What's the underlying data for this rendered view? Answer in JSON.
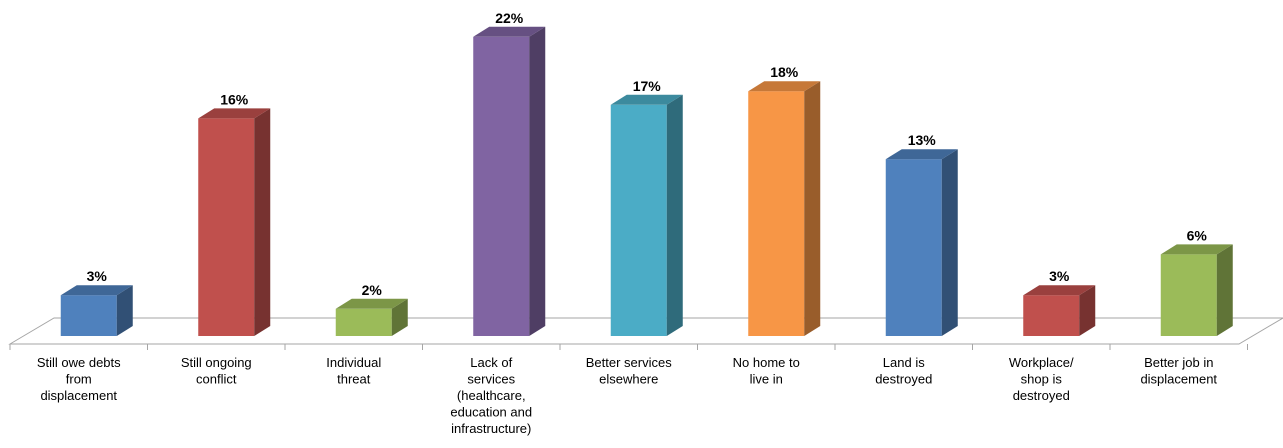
{
  "chart_data": {
    "type": "bar",
    "categories": [
      "Still owe debts from displacement",
      "Still ongoing conflict",
      "Individual threat",
      "Lack of services (healthcare, education and infrastructure)",
      "Better services elsewhere",
      "No home to live in",
      "Land is destroyed",
      "Workplace/ shop is destroyed",
      "Better job in displacement"
    ],
    "category_lines": [
      [
        "Still owe debts",
        "from",
        "displacement"
      ],
      [
        "Still ongoing",
        "conflict"
      ],
      [
        "Individual",
        "threat"
      ],
      [
        "Lack of",
        "services",
        "(healthcare,",
        "education and",
        "infrastructure)"
      ],
      [
        "Better services",
        "elsewhere"
      ],
      [
        "No home to",
        "live in"
      ],
      [
        "Land is",
        "destroyed"
      ],
      [
        "Workplace/",
        "shop is",
        "destroyed"
      ],
      [
        "Better job in",
        "displacement"
      ]
    ],
    "values": [
      3,
      16,
      2,
      22,
      17,
      18,
      13,
      3,
      6
    ],
    "data_labels": [
      "3%",
      "16%",
      "2%",
      "22%",
      "17%",
      "18%",
      "13%",
      "3%",
      "6%"
    ],
    "colors": [
      "#4F81BD",
      "#C0504D",
      "#9BBB59",
      "#8064A2",
      "#4BACC6",
      "#F79646",
      "#4F81BD",
      "#C0504D",
      "#9BBB59"
    ],
    "style": "3d-column",
    "grid": false,
    "legend": "none"
  }
}
